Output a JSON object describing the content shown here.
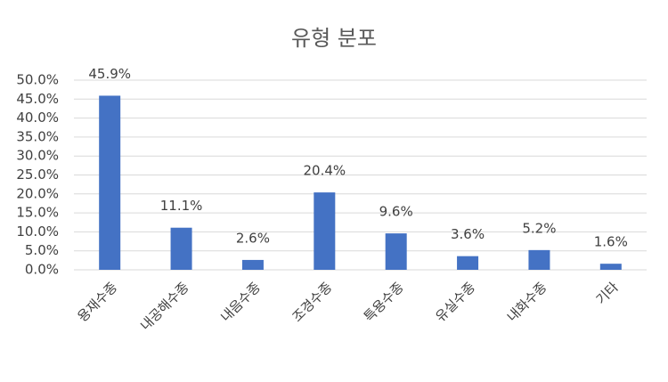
{
  "chart_data": {
    "type": "bar",
    "title": "유형 분포",
    "categories": [
      "용재수종",
      "내공해수종",
      "내음수종",
      "조경수종",
      "특용수종",
      "유실수종",
      "내화수종",
      "기타"
    ],
    "values": [
      45.9,
      11.1,
      2.6,
      20.4,
      9.6,
      3.6,
      5.2,
      1.6
    ],
    "value_labels": [
      "45.9%",
      "11.1%",
      "2.6%",
      "20.4%",
      "9.6%",
      "3.6%",
      "5.2%",
      "1.6%"
    ],
    "color": "#4472c4",
    "ylim": [
      0,
      50
    ],
    "yticks": [
      {
        "value": 0,
        "label": "0.0%"
      },
      {
        "value": 5,
        "label": "5.0%"
      },
      {
        "value": 10,
        "label": "10.0%"
      },
      {
        "value": 15,
        "label": "15.0%"
      },
      {
        "value": 20,
        "label": "20.0%"
      },
      {
        "value": 25,
        "label": "25.0%"
      },
      {
        "value": 30,
        "label": "30.0%"
      },
      {
        "value": 35,
        "label": "35.0%"
      },
      {
        "value": 40,
        "label": "40.0%"
      },
      {
        "value": 45,
        "label": "45.0%"
      },
      {
        "value": 50,
        "label": "50.0%"
      }
    ],
    "grid": true
  }
}
